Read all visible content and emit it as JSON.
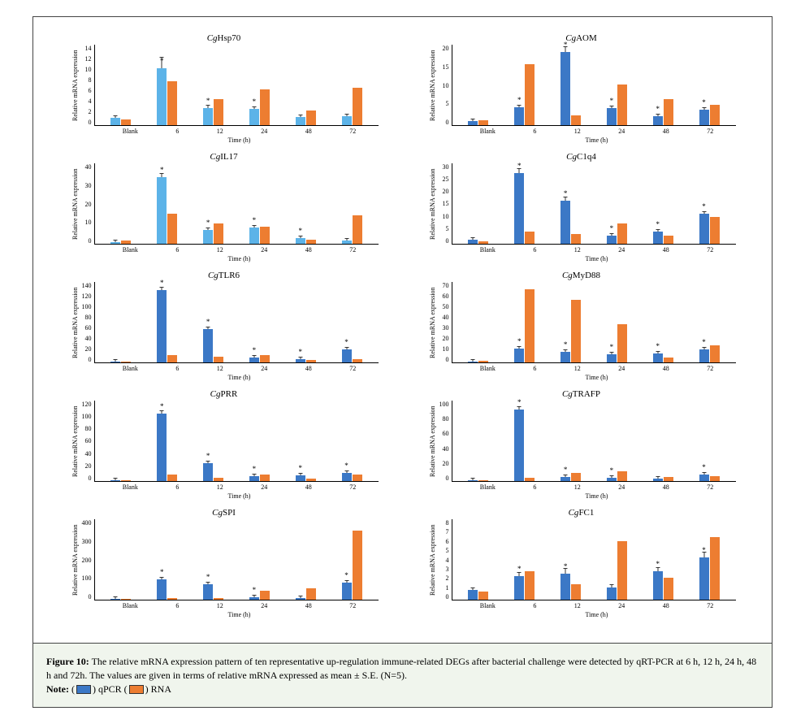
{
  "figure": {
    "y_axis_label": "Relative mRNA expression",
    "x_axis_label": "Time (h)",
    "categories": [
      "Blank",
      "6",
      "12",
      "24",
      "48",
      "72"
    ],
    "color_qpcr": "#3b78c6",
    "color_qpcr_alt": "#5cb3e8",
    "color_rna": "#ed7d31",
    "charts": [
      {
        "title_prefix": "Cg",
        "title_main": "Hsp70",
        "ymax": 14,
        "yticks": [
          0,
          2,
          4,
          6,
          8,
          10,
          12,
          14
        ],
        "blue_alt": true,
        "series_qpcr": [
          1.2,
          9.8,
          3.0,
          2.8,
          1.4,
          1.6
        ],
        "series_rna": [
          1.0,
          7.5,
          4.5,
          6.2,
          2.5,
          6.5
        ],
        "errors_qpcr": [
          0.3,
          2.0,
          0.5,
          0.4,
          0.3,
          0.3
        ],
        "errors_rna": [
          0,
          0,
          0,
          0,
          0,
          0
        ],
        "stars_qpcr": [
          false,
          true,
          true,
          true,
          false,
          false
        ]
      },
      {
        "title_prefix": "Cg",
        "title_main": "AOM",
        "ymax": 20,
        "yticks": [
          0,
          5,
          10,
          15,
          20
        ],
        "series_qpcr": [
          1.0,
          4.5,
          18.0,
          4.2,
          2.3,
          3.8
        ],
        "series_rna": [
          1.2,
          15.0,
          2.5,
          10.0,
          6.5,
          5.0
        ],
        "errors_qpcr": [
          0.2,
          0.5,
          1.5,
          0.5,
          0.3,
          0.4
        ],
        "errors_rna": [
          0,
          0,
          0,
          0,
          0,
          0
        ],
        "stars_qpcr": [
          false,
          true,
          true,
          true,
          true,
          true
        ]
      },
      {
        "title_prefix": "Cg",
        "title_main": "IL17",
        "ymax": 40,
        "yticks": [
          0,
          10,
          20,
          30,
          40
        ],
        "blue_alt": true,
        "series_qpcr": [
          1.0,
          33.0,
          7.0,
          8.0,
          3.0,
          1.5
        ],
        "series_rna": [
          1.5,
          15.0,
          10.0,
          8.5,
          2.0,
          14.0
        ],
        "errors_qpcr": [
          0.3,
          2.0,
          1.0,
          1.0,
          0.5,
          0.3
        ],
        "errors_rna": [
          0,
          0,
          0,
          0,
          0,
          0
        ],
        "stars_qpcr": [
          false,
          true,
          true,
          true,
          true,
          false
        ]
      },
      {
        "title_prefix": "Cg",
        "title_main": "C1q4",
        "ymax": 30,
        "yticks": [
          0,
          5,
          10,
          15,
          20,
          25,
          30
        ],
        "series_qpcr": [
          1.5,
          26.0,
          16.0,
          3.0,
          4.5,
          11.0
        ],
        "series_rna": [
          1.0,
          4.5,
          3.5,
          7.5,
          3.0,
          10.0
        ],
        "errors_qpcr": [
          0.3,
          2.0,
          1.5,
          0.5,
          0.5,
          1.0
        ],
        "errors_rna": [
          0,
          0,
          0,
          0,
          0,
          0
        ],
        "stars_qpcr": [
          false,
          true,
          true,
          true,
          true,
          true
        ]
      },
      {
        "title_prefix": "Cg",
        "title_main": "TLR6",
        "ymax": 140,
        "yticks": [
          0,
          20,
          40,
          60,
          80,
          100,
          120,
          140
        ],
        "series_qpcr": [
          1.5,
          125.0,
          58.0,
          8.0,
          6.0,
          22.0
        ],
        "series_rna": [
          1.0,
          12.0,
          10.0,
          12.0,
          4.0,
          5.0
        ],
        "errors_qpcr": [
          0.5,
          5.0,
          3.0,
          1.0,
          1.0,
          2.0
        ],
        "errors_rna": [
          0,
          0,
          0,
          0,
          0,
          0
        ],
        "stars_qpcr": [
          false,
          true,
          true,
          true,
          true,
          true
        ]
      },
      {
        "title_prefix": "Cg",
        "title_main": "MyD88",
        "ymax": 70,
        "yticks": [
          0,
          10,
          20,
          30,
          40,
          50,
          60,
          70
        ],
        "series_qpcr": [
          1.0,
          12.0,
          9.0,
          7.0,
          8.0,
          11.0
        ],
        "series_rna": [
          1.2,
          63.0,
          54.0,
          33.0,
          4.0,
          15.0
        ],
        "errors_qpcr": [
          0.3,
          1.5,
          1.0,
          1.0,
          1.0,
          1.0
        ],
        "errors_rna": [
          0,
          0,
          0,
          0,
          0,
          0
        ],
        "stars_qpcr": [
          false,
          true,
          true,
          true,
          true,
          true
        ]
      },
      {
        "title_prefix": "Cg",
        "title_main": "PRR",
        "ymax": 120,
        "yticks": [
          0,
          20,
          40,
          60,
          80,
          100,
          120
        ],
        "series_qpcr": [
          1.2,
          100.0,
          26.0,
          7.0,
          8.0,
          12.0
        ],
        "series_rna": [
          1.0,
          10.0,
          5.0,
          10.0,
          4.0,
          10.0
        ],
        "errors_qpcr": [
          0.3,
          5.0,
          2.0,
          1.0,
          1.0,
          1.5
        ],
        "errors_rna": [
          0,
          0,
          0,
          0,
          0,
          0
        ],
        "stars_qpcr": [
          false,
          true,
          true,
          true,
          true,
          true
        ]
      },
      {
        "title_prefix": "Cg",
        "title_main": "TRAFP",
        "ymax": 100,
        "yticks": [
          0,
          20,
          40,
          60,
          80,
          100
        ],
        "series_qpcr": [
          1.0,
          88.0,
          5.0,
          4.0,
          3.0,
          8.0
        ],
        "series_rna": [
          1.2,
          4.0,
          10.0,
          12.0,
          5.0,
          6.0
        ],
        "errors_qpcr": [
          0.3,
          4.0,
          0.8,
          0.8,
          0.5,
          1.0
        ],
        "errors_rna": [
          0,
          0,
          0,
          0,
          0,
          0
        ],
        "stars_qpcr": [
          false,
          true,
          true,
          true,
          false,
          true
        ]
      },
      {
        "title_prefix": "Cg",
        "title_main": "SPI",
        "ymax": 400,
        "yticks": [
          0,
          100,
          200,
          300,
          400
        ],
        "series_qpcr": [
          2.0,
          100.0,
          75.0,
          12.0,
          8.0,
          85.0
        ],
        "series_rna": [
          2.0,
          10.0,
          8.0,
          45.0,
          55.0,
          340.0
        ],
        "errors_qpcr": [
          1.0,
          10.0,
          8.0,
          2.0,
          2.0,
          10.0
        ],
        "errors_rna": [
          0,
          0,
          0,
          0,
          0,
          0
        ],
        "stars_qpcr": [
          false,
          true,
          true,
          true,
          false,
          true
        ]
      },
      {
        "title_prefix": "Cg",
        "title_main": "FC1",
        "ymax": 8,
        "yticks": [
          0,
          1,
          2,
          3,
          4,
          5,
          6,
          7,
          8
        ],
        "series_qpcr": [
          1.0,
          2.3,
          2.6,
          1.2,
          2.8,
          4.2
        ],
        "series_rna": [
          0.8,
          2.8,
          1.5,
          5.8,
          2.2,
          6.2
        ],
        "errors_qpcr": [
          0.2,
          0.4,
          0.5,
          0.3,
          0.4,
          0.5
        ],
        "errors_rna": [
          0,
          0,
          0,
          0,
          0,
          0
        ],
        "stars_qpcr": [
          false,
          true,
          true,
          false,
          true,
          true
        ]
      }
    ]
  },
  "caption": {
    "figure_label": "Figure 10:",
    "text_1": " The relative mRNA expression pattern of ten representative up-regulation immune-related DEGs after bacterial challenge were detected by qRT-PCR at 6 h, 12 h, 24 h, 48 h and 72h. The values are given in terms of relative mRNA expressed as mean ± S.E. (N=5).",
    "note_label": "Note:",
    "legend_qpcr": " qPCR ",
    "legend_rna": " RNA"
  }
}
